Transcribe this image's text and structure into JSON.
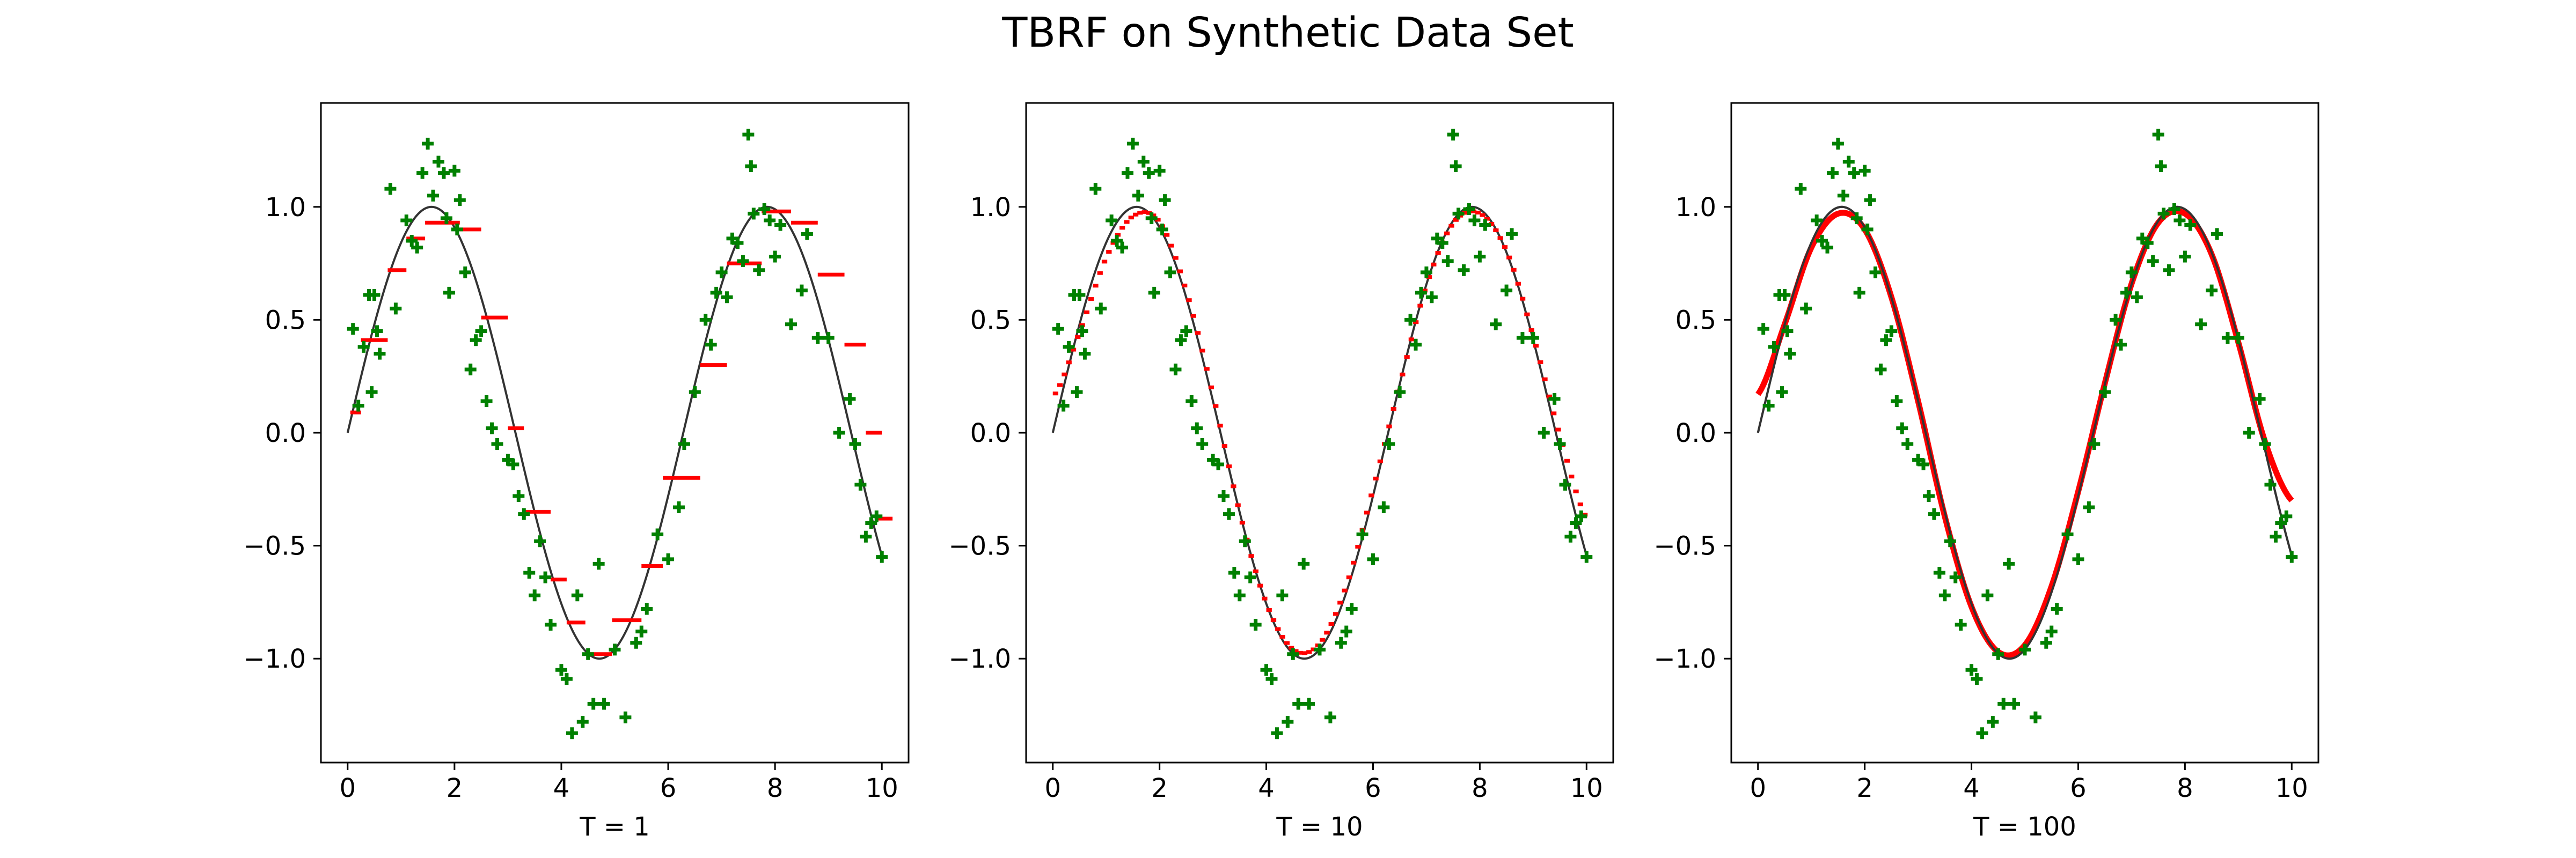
{
  "figure": {
    "title": "TBRF on Synthetic Data Set"
  },
  "colors": {
    "data_points": "#008000",
    "prediction": "#ff0000",
    "true_function": "#333333",
    "axes": "#000000",
    "background": "#ffffff"
  },
  "chart_data": [
    {
      "type": "scatter",
      "xlabel": "T = 1",
      "xlim": [
        -0.5,
        10.5
      ],
      "ylim": [
        -1.46,
        1.46
      ],
      "xticks": [
        0,
        2,
        4,
        6,
        8,
        10
      ],
      "xtick_labels": [
        "0",
        "2",
        "4",
        "6",
        "8",
        "10"
      ],
      "yticks": [
        -1.0,
        -0.5,
        0.0,
        0.5,
        1.0
      ],
      "ytick_labels": [
        "−1.0",
        "−0.5",
        "0.0",
        "0.5",
        "1.0"
      ],
      "true_function": "sin(x)",
      "true_function_x_range": [
        0,
        10
      ],
      "series": [
        {
          "name": "noisy samples",
          "style": "plus-marker",
          "color": "#008000",
          "x": [
            0.1,
            0.2,
            0.3,
            0.4,
            0.45,
            0.5,
            0.55,
            0.6,
            0.8,
            0.9,
            1.1,
            1.2,
            1.3,
            1.4,
            1.5,
            1.6,
            1.7,
            1.8,
            1.85,
            1.9,
            2.0,
            2.05,
            2.1,
            2.2,
            2.3,
            2.4,
            2.5,
            2.6,
            2.7,
            2.8,
            3.0,
            3.1,
            3.2,
            3.3,
            3.4,
            3.5,
            3.6,
            3.7,
            3.8,
            4.0,
            4.1,
            4.2,
            4.3,
            4.4,
            4.5,
            4.6,
            4.7,
            4.8,
            5.0,
            5.2,
            5.4,
            5.5,
            5.6,
            5.8,
            6.0,
            6.2,
            6.3,
            6.5,
            6.7,
            6.8,
            6.9,
            7.0,
            7.1,
            7.2,
            7.3,
            7.4,
            7.5,
            7.55,
            7.6,
            7.7,
            7.8,
            7.9,
            8.0,
            8.1,
            8.3,
            8.5,
            8.6,
            8.8,
            9.0,
            9.2,
            9.4,
            9.5,
            9.6,
            9.7,
            9.8,
            9.9,
            10.0
          ],
          "y": [
            0.46,
            0.12,
            0.38,
            0.61,
            0.18,
            0.61,
            0.45,
            0.35,
            1.08,
            0.55,
            0.94,
            0.85,
            0.82,
            1.15,
            1.28,
            1.05,
            1.2,
            1.15,
            0.95,
            0.62,
            1.16,
            0.9,
            1.03,
            0.71,
            0.28,
            0.41,
            0.45,
            0.14,
            0.02,
            -0.05,
            -0.12,
            -0.14,
            -0.28,
            -0.36,
            -0.62,
            -0.72,
            -0.48,
            -0.64,
            -0.85,
            -1.05,
            -1.09,
            -1.33,
            -0.72,
            -1.28,
            -0.98,
            -1.2,
            -0.58,
            -1.2,
            -0.96,
            -1.26,
            -0.93,
            -0.88,
            -0.78,
            -0.45,
            -0.56,
            -0.33,
            -0.05,
            0.18,
            0.5,
            0.39,
            0.62,
            0.71,
            0.6,
            0.86,
            0.84,
            0.76,
            1.32,
            1.18,
            0.97,
            0.72,
            0.99,
            0.94,
            0.78,
            0.92,
            0.48,
            0.63,
            0.88,
            0.42,
            0.42,
            0.0,
            0.15,
            -0.05,
            -0.23,
            -0.46,
            -0.4,
            -0.37,
            -0.55
          ]
        },
        {
          "name": "prediction",
          "style": "steps",
          "color": "#ff0000",
          "segments": [
            [
              0.05,
              0.25,
              0.09
            ],
            [
              0.25,
              0.75,
              0.41
            ],
            [
              0.75,
              1.1,
              0.72
            ],
            [
              1.1,
              1.45,
              0.86
            ],
            [
              1.45,
              2.1,
              0.93
            ],
            [
              2.1,
              2.5,
              0.9
            ],
            [
              2.5,
              3.0,
              0.51
            ],
            [
              3.0,
              3.3,
              0.02
            ],
            [
              3.3,
              3.8,
              -0.35
            ],
            [
              3.8,
              4.1,
              -0.65
            ],
            [
              4.1,
              4.45,
              -0.84
            ],
            [
              4.45,
              4.95,
              -0.98
            ],
            [
              4.95,
              5.5,
              -0.83
            ],
            [
              5.5,
              5.9,
              -0.59
            ],
            [
              5.9,
              6.6,
              -0.2
            ],
            [
              6.6,
              7.1,
              0.3
            ],
            [
              7.1,
              7.75,
              0.75
            ],
            [
              7.75,
              8.3,
              0.98
            ],
            [
              8.3,
              8.8,
              0.93
            ],
            [
              8.8,
              9.3,
              0.7
            ],
            [
              9.3,
              9.7,
              0.39
            ],
            [
              9.7,
              10.0,
              0.0
            ],
            [
              9.9,
              10.2,
              -0.38
            ]
          ]
        }
      ]
    },
    {
      "type": "scatter",
      "xlabel": "T = 10",
      "xlim": [
        -0.5,
        10.5
      ],
      "ylim": [
        -1.46,
        1.46
      ],
      "xticks": [
        0,
        2,
        4,
        6,
        8,
        10
      ],
      "xtick_labels": [
        "0",
        "2",
        "4",
        "6",
        "8",
        "10"
      ],
      "yticks": [
        -1.0,
        -0.5,
        0.0,
        0.5,
        1.0
      ],
      "ytick_labels": [
        "−1.0",
        "−0.5",
        "0.0",
        "0.5",
        "1.0"
      ],
      "true_function": "sin(x)",
      "true_function_x_range": [
        0,
        10
      ],
      "series": [
        {
          "name": "noisy samples",
          "style": "plus-marker",
          "color": "#008000",
          "x": [
            0.1,
            0.2,
            0.3,
            0.4,
            0.45,
            0.5,
            0.55,
            0.6,
            0.8,
            0.9,
            1.1,
            1.2,
            1.3,
            1.4,
            1.5,
            1.6,
            1.7,
            1.8,
            1.85,
            1.9,
            2.0,
            2.05,
            2.1,
            2.2,
            2.3,
            2.4,
            2.5,
            2.6,
            2.7,
            2.8,
            3.0,
            3.1,
            3.2,
            3.3,
            3.4,
            3.5,
            3.6,
            3.7,
            3.8,
            4.0,
            4.1,
            4.2,
            4.3,
            4.4,
            4.5,
            4.6,
            4.7,
            4.8,
            5.0,
            5.2,
            5.4,
            5.5,
            5.6,
            5.8,
            6.0,
            6.2,
            6.3,
            6.5,
            6.7,
            6.8,
            6.9,
            7.0,
            7.1,
            7.2,
            7.3,
            7.4,
            7.5,
            7.55,
            7.6,
            7.7,
            7.8,
            7.9,
            8.0,
            8.1,
            8.3,
            8.5,
            8.6,
            8.8,
            9.0,
            9.2,
            9.4,
            9.5,
            9.6,
            9.7,
            9.8,
            9.9,
            10.0
          ],
          "y": [
            0.46,
            0.12,
            0.38,
            0.61,
            0.18,
            0.61,
            0.45,
            0.35,
            1.08,
            0.55,
            0.94,
            0.85,
            0.82,
            1.15,
            1.28,
            1.05,
            1.2,
            1.15,
            0.95,
            0.62,
            1.16,
            0.9,
            1.03,
            0.71,
            0.28,
            0.41,
            0.45,
            0.14,
            0.02,
            -0.05,
            -0.12,
            -0.14,
            -0.28,
            -0.36,
            -0.62,
            -0.72,
            -0.48,
            -0.64,
            -0.85,
            -1.05,
            -1.09,
            -1.33,
            -0.72,
            -1.28,
            -0.98,
            -1.2,
            -0.58,
            -1.2,
            -0.96,
            -1.26,
            -0.93,
            -0.88,
            -0.78,
            -0.45,
            -0.56,
            -0.33,
            -0.05,
            0.18,
            0.5,
            0.39,
            0.62,
            0.71,
            0.6,
            0.86,
            0.84,
            0.76,
            1.32,
            1.18,
            0.97,
            0.72,
            0.99,
            0.94,
            0.78,
            0.92,
            0.48,
            0.63,
            0.88,
            0.42,
            0.42,
            0.0,
            0.15,
            -0.05,
            -0.23,
            -0.46,
            -0.4,
            -0.37,
            -0.55
          ]
        },
        {
          "name": "prediction",
          "style": "fine-steps",
          "color": "#ff0000",
          "x": [
            0.0,
            0.5,
            1.0,
            1.5,
            2.0,
            2.5,
            3.0,
            3.5,
            4.0,
            4.5,
            5.0,
            5.5,
            6.0,
            6.5,
            7.0,
            7.5,
            8.0,
            8.5,
            9.0,
            9.5,
            10.0
          ],
          "y": [
            0.16,
            0.45,
            0.78,
            0.96,
            0.93,
            0.62,
            0.16,
            -0.36,
            -0.76,
            -0.96,
            -0.93,
            -0.67,
            -0.24,
            0.22,
            0.66,
            0.93,
            0.97,
            0.8,
            0.42,
            -0.02,
            -0.38
          ]
        }
      ]
    },
    {
      "type": "scatter",
      "xlabel": "T = 100",
      "xlim": [
        -0.5,
        10.5
      ],
      "ylim": [
        -1.46,
        1.46
      ],
      "xticks": [
        0,
        2,
        4,
        6,
        8,
        10
      ],
      "xtick_labels": [
        "0",
        "2",
        "4",
        "6",
        "8",
        "10"
      ],
      "yticks": [
        -1.0,
        -0.5,
        0.0,
        0.5,
        1.0
      ],
      "ytick_labels": [
        "−1.0",
        "−0.5",
        "0.0",
        "0.5",
        "1.0"
      ],
      "true_function": "sin(x)",
      "true_function_x_range": [
        0,
        10
      ],
      "series": [
        {
          "name": "noisy samples",
          "style": "plus-marker",
          "color": "#008000",
          "x": [
            0.1,
            0.2,
            0.3,
            0.4,
            0.45,
            0.5,
            0.55,
            0.6,
            0.8,
            0.9,
            1.1,
            1.2,
            1.3,
            1.4,
            1.5,
            1.6,
            1.7,
            1.8,
            1.85,
            1.9,
            2.0,
            2.05,
            2.1,
            2.2,
            2.3,
            2.4,
            2.5,
            2.6,
            2.7,
            2.8,
            3.0,
            3.1,
            3.2,
            3.3,
            3.4,
            3.5,
            3.6,
            3.7,
            3.8,
            4.0,
            4.1,
            4.2,
            4.3,
            4.4,
            4.5,
            4.6,
            4.7,
            4.8,
            5.0,
            5.2,
            5.4,
            5.5,
            5.6,
            5.8,
            6.0,
            6.2,
            6.3,
            6.5,
            6.7,
            6.8,
            6.9,
            7.0,
            7.1,
            7.2,
            7.3,
            7.4,
            7.5,
            7.55,
            7.6,
            7.7,
            7.8,
            7.9,
            8.0,
            8.1,
            8.3,
            8.5,
            8.6,
            8.8,
            9.0,
            9.2,
            9.4,
            9.5,
            9.6,
            9.7,
            9.8,
            9.9,
            10.0
          ],
          "y": [
            0.46,
            0.12,
            0.38,
            0.61,
            0.18,
            0.61,
            0.45,
            0.35,
            1.08,
            0.55,
            0.94,
            0.85,
            0.82,
            1.15,
            1.28,
            1.05,
            1.2,
            1.15,
            0.95,
            0.62,
            1.16,
            0.9,
            1.03,
            0.71,
            0.28,
            0.41,
            0.45,
            0.14,
            0.02,
            -0.05,
            -0.12,
            -0.14,
            -0.28,
            -0.36,
            -0.62,
            -0.72,
            -0.48,
            -0.64,
            -0.85,
            -1.05,
            -1.09,
            -1.33,
            -0.72,
            -1.28,
            -0.98,
            -1.2,
            -0.58,
            -1.2,
            -0.96,
            -1.26,
            -0.93,
            -0.88,
            -0.78,
            -0.45,
            -0.56,
            -0.33,
            -0.05,
            0.18,
            0.5,
            0.39,
            0.62,
            0.71,
            0.6,
            0.86,
            0.84,
            0.76,
            1.32,
            1.18,
            0.97,
            0.72,
            0.99,
            0.94,
            0.78,
            0.92,
            0.48,
            0.63,
            0.88,
            0.42,
            0.42,
            0.0,
            0.15,
            -0.05,
            -0.23,
            -0.46,
            -0.4,
            -0.37,
            -0.55
          ]
        },
        {
          "name": "prediction",
          "style": "smooth",
          "color": "#ff0000",
          "x": [
            0.0,
            0.5,
            1.0,
            1.5,
            2.0,
            2.5,
            3.0,
            3.5,
            4.0,
            4.5,
            5.0,
            5.5,
            6.0,
            6.5,
            7.0,
            7.5,
            8.0,
            8.5,
            9.0,
            9.5,
            10.0
          ],
          "y": [
            0.17,
            0.48,
            0.82,
            0.97,
            0.9,
            0.6,
            0.14,
            -0.37,
            -0.77,
            -0.97,
            -0.94,
            -0.68,
            -0.26,
            0.22,
            0.66,
            0.93,
            0.97,
            0.79,
            0.4,
            -0.04,
            -0.3
          ]
        }
      ]
    }
  ]
}
